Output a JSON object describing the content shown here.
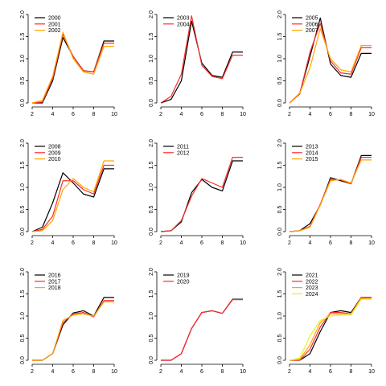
{
  "colors": {
    "black": "#000000",
    "red": "#ff2a2a",
    "orange": "#ffa500",
    "yellow": "#e6f030",
    "axis": "#000000",
    "background": "#ffffff"
  },
  "chart_data": [
    {
      "type": "line",
      "x": [
        2,
        3,
        4,
        5,
        6,
        7,
        8,
        9,
        10
      ],
      "xticks": [
        2,
        4,
        6,
        8,
        10
      ],
      "yticks": [
        0.0,
        0.5,
        1.0,
        1.5,
        2.0
      ],
      "xlim": [
        2,
        10
      ],
      "ylim": [
        0,
        2
      ],
      "grid": false,
      "legend_position": "top-left",
      "series": [
        {
          "name": "2000",
          "color": "black",
          "values": [
            0.0,
            0.0,
            0.5,
            1.48,
            1.05,
            0.73,
            0.7,
            1.4,
            1.4
          ]
        },
        {
          "name": "2001",
          "color": "red",
          "values": [
            0.0,
            0.02,
            0.55,
            1.55,
            1.05,
            0.73,
            0.7,
            1.35,
            1.35
          ]
        },
        {
          "name": "2002",
          "color": "orange",
          "values": [
            0.0,
            0.06,
            0.6,
            1.6,
            1.0,
            0.7,
            0.65,
            1.28,
            1.28
          ]
        }
      ]
    },
    {
      "type": "line",
      "x": [
        2,
        3,
        4,
        5,
        6,
        7,
        8,
        9,
        10
      ],
      "xticks": [
        2,
        4,
        6,
        8,
        10
      ],
      "yticks": [
        0.0,
        0.5,
        1.0,
        1.5,
        2.0
      ],
      "xlim": [
        2,
        10
      ],
      "ylim": [
        0,
        2
      ],
      "grid": false,
      "legend_position": "top-left",
      "series": [
        {
          "name": "2003",
          "color": "black",
          "values": [
            0.0,
            0.08,
            0.5,
            1.85,
            0.9,
            0.62,
            0.58,
            1.15,
            1.15
          ]
        },
        {
          "name": "2004",
          "color": "red",
          "values": [
            0.0,
            0.15,
            0.65,
            1.97,
            0.85,
            0.6,
            0.55,
            1.08,
            1.08
          ]
        }
      ]
    },
    {
      "type": "line",
      "x": [
        2,
        3,
        4,
        5,
        6,
        7,
        8,
        9,
        10
      ],
      "xticks": [
        2,
        4,
        6,
        8,
        10
      ],
      "yticks": [
        0.0,
        0.5,
        1.0,
        1.5,
        2.0
      ],
      "xlim": [
        2,
        10
      ],
      "ylim": [
        0,
        2
      ],
      "grid": false,
      "legend_position": "top-left",
      "series": [
        {
          "name": "2005",
          "color": "black",
          "values": [
            0.0,
            0.22,
            1.05,
            1.92,
            0.88,
            0.62,
            0.58,
            1.12,
            1.12
          ]
        },
        {
          "name": "2006",
          "color": "red",
          "values": [
            0.0,
            0.2,
            1.15,
            1.8,
            0.95,
            0.68,
            0.65,
            1.25,
            1.25
          ]
        },
        {
          "name": "2007",
          "color": "orange",
          "values": [
            0.0,
            0.22,
            0.8,
            1.68,
            1.0,
            0.75,
            0.7,
            1.3,
            1.3
          ]
        }
      ]
    },
    {
      "type": "line",
      "x": [
        2,
        3,
        4,
        5,
        6,
        7,
        8,
        9,
        10
      ],
      "xticks": [
        2,
        4,
        6,
        8,
        10
      ],
      "yticks": [
        0.0,
        0.5,
        1.0,
        1.5,
        2.0
      ],
      "xlim": [
        2,
        10
      ],
      "ylim": [
        0,
        2
      ],
      "grid": false,
      "legend_position": "top-left",
      "series": [
        {
          "name": "2008",
          "color": "black",
          "values": [
            0.0,
            0.1,
            0.65,
            1.33,
            1.1,
            0.85,
            0.78,
            1.42,
            1.42
          ]
        },
        {
          "name": "2009",
          "color": "red",
          "values": [
            0.0,
            0.05,
            0.35,
            1.15,
            1.15,
            0.95,
            0.85,
            1.5,
            1.5
          ]
        },
        {
          "name": "2010",
          "color": "orange",
          "values": [
            0.0,
            0.02,
            0.25,
            0.95,
            1.2,
            1.0,
            0.9,
            1.6,
            1.6
          ]
        }
      ]
    },
    {
      "type": "line",
      "x": [
        2,
        3,
        4,
        5,
        6,
        7,
        8,
        9,
        10
      ],
      "xticks": [
        2,
        4,
        6,
        8,
        10
      ],
      "yticks": [
        0.0,
        0.5,
        1.0,
        1.5,
        2.0
      ],
      "xlim": [
        2,
        10
      ],
      "ylim": [
        0,
        2
      ],
      "grid": false,
      "legend_position": "top-left",
      "series": [
        {
          "name": "2011",
          "color": "black",
          "values": [
            0.0,
            0.02,
            0.22,
            0.88,
            1.18,
            1.0,
            0.92,
            1.6,
            1.6
          ]
        },
        {
          "name": "2012",
          "color": "red",
          "values": [
            0.0,
            0.02,
            0.25,
            0.8,
            1.2,
            1.1,
            1.0,
            1.68,
            1.68
          ]
        }
      ]
    },
    {
      "type": "line",
      "x": [
        2,
        3,
        4,
        5,
        6,
        7,
        8,
        9,
        10
      ],
      "xticks": [
        2,
        4,
        6,
        8,
        10
      ],
      "yticks": [
        0.0,
        0.5,
        1.0,
        1.5,
        2.0
      ],
      "xlim": [
        2,
        10
      ],
      "ylim": [
        0,
        2
      ],
      "grid": false,
      "legend_position": "top-left",
      "series": [
        {
          "name": "2013",
          "color": "black",
          "values": [
            0.0,
            0.02,
            0.18,
            0.6,
            1.22,
            1.15,
            1.08,
            1.72,
            1.72
          ]
        },
        {
          "name": "2014",
          "color": "red",
          "values": [
            0.0,
            0.02,
            0.12,
            0.62,
            1.18,
            1.17,
            1.08,
            1.68,
            1.68
          ]
        },
        {
          "name": "2015",
          "color": "orange",
          "values": [
            0.0,
            0.02,
            0.1,
            0.6,
            1.15,
            1.18,
            1.1,
            1.62,
            1.62
          ]
        }
      ]
    },
    {
      "type": "line",
      "x": [
        2,
        3,
        4,
        5,
        6,
        7,
        8,
        9,
        10
      ],
      "xticks": [
        2,
        4,
        6,
        8,
        10
      ],
      "yticks": [
        0.0,
        0.5,
        1.0,
        1.5,
        2.0
      ],
      "xlim": [
        2,
        10
      ],
      "ylim": [
        0,
        2
      ],
      "grid": false,
      "legend_position": "top-left",
      "series": [
        {
          "name": "2016",
          "color": "black",
          "values": [
            0.0,
            0.0,
            0.15,
            0.8,
            1.07,
            1.12,
            1.0,
            1.42,
            1.42
          ]
        },
        {
          "name": "2017",
          "color": "red",
          "values": [
            0.0,
            0.0,
            0.15,
            0.85,
            1.05,
            1.08,
            0.98,
            1.35,
            1.35
          ]
        },
        {
          "name": "2018",
          "color": "orange",
          "values": [
            0.0,
            0.0,
            0.15,
            0.9,
            1.02,
            1.05,
            1.0,
            1.32,
            1.32
          ]
        }
      ]
    },
    {
      "type": "line",
      "x": [
        2,
        3,
        4,
        5,
        6,
        7,
        8,
        9,
        10
      ],
      "xticks": [
        2,
        4,
        6,
        8,
        10
      ],
      "yticks": [
        0.0,
        0.5,
        1.0,
        1.5,
        2.0
      ],
      "xlim": [
        2,
        10
      ],
      "ylim": [
        0,
        2
      ],
      "grid": false,
      "legend_position": "top-left",
      "series": [
        {
          "name": "2019",
          "color": "black",
          "values": [
            0.0,
            0.0,
            0.15,
            0.72,
            1.08,
            1.12,
            1.06,
            1.38,
            1.38
          ]
        },
        {
          "name": "2020",
          "color": "red",
          "values": [
            0.0,
            0.0,
            0.15,
            0.72,
            1.08,
            1.12,
            1.06,
            1.37,
            1.37
          ]
        }
      ]
    },
    {
      "type": "line",
      "x": [
        2,
        3,
        4,
        5,
        6,
        7,
        8,
        9,
        10
      ],
      "xticks": [
        2,
        4,
        6,
        8,
        10
      ],
      "yticks": [
        0.0,
        0.5,
        1.0,
        1.5,
        2.0
      ],
      "xlim": [
        2,
        10
      ],
      "ylim": [
        0,
        2
      ],
      "grid": false,
      "legend_position": "top-left",
      "series": [
        {
          "name": "2021",
          "color": "black",
          "values": [
            0.0,
            0.0,
            0.15,
            0.65,
            1.08,
            1.12,
            1.08,
            1.42,
            1.42
          ]
        },
        {
          "name": "2022",
          "color": "red",
          "values": [
            0.0,
            0.0,
            0.25,
            0.75,
            1.08,
            1.08,
            1.05,
            1.42,
            1.42
          ]
        },
        {
          "name": "2023",
          "color": "orange",
          "values": [
            0.0,
            0.02,
            0.35,
            0.85,
            1.05,
            1.05,
            1.05,
            1.4,
            1.4
          ]
        },
        {
          "name": "2024",
          "color": "yellow",
          "values": [
            0.0,
            0.05,
            0.55,
            0.9,
            1.0,
            1.02,
            1.02,
            1.38,
            1.38
          ]
        }
      ]
    }
  ]
}
